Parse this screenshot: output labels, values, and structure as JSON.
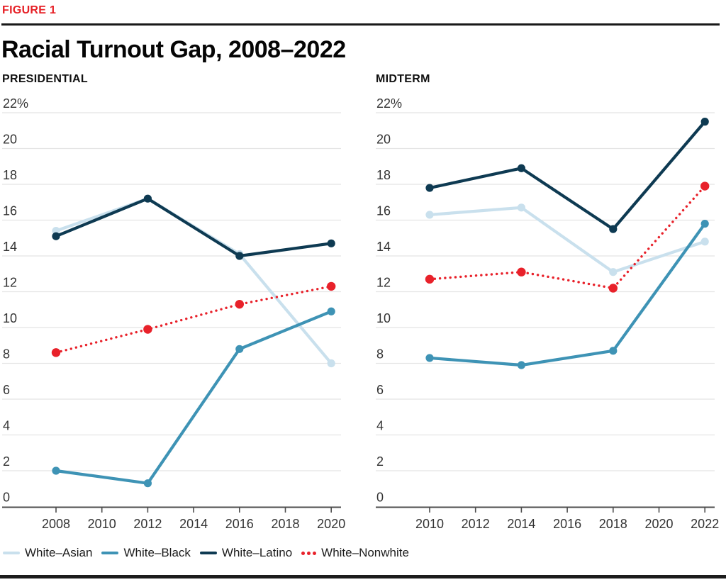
{
  "header": {
    "figure_label": "FIGURE 1",
    "title": "Racial Turnout Gap, 2008–2022"
  },
  "colors": {
    "white_asian": "#c9e0ed",
    "white_black": "#3e93b5",
    "white_latino": "#0e3a52",
    "white_nonwhite": "#e8212a",
    "figure_label_red": "#e62026",
    "gridline": "#e4e4e4",
    "axis": "#4d4d4d",
    "tick_text": "#333333",
    "rule": "#191919"
  },
  "legend": {
    "items": [
      {
        "label": "White–Asian",
        "series_key": "white_asian",
        "swatch": "line"
      },
      {
        "label": "White–Black",
        "series_key": "white_black",
        "swatch": "line"
      },
      {
        "label": "White–Latino",
        "series_key": "white_latino",
        "swatch": "line"
      },
      {
        "label": "White–Nonwhite",
        "series_key": "white_nonwhite",
        "swatch": "dots"
      }
    ]
  },
  "chart_data": [
    {
      "type": "line",
      "title": "PRESIDENTIAL",
      "ylabel_top_tick": "22%",
      "ylim": [
        0,
        22
      ],
      "ytick_step": 2,
      "grid": true,
      "legend_position": "bottom",
      "x_axis_ticks": [
        2008,
        2010,
        2012,
        2014,
        2016,
        2018,
        2020
      ],
      "x": [
        2008,
        2012,
        2016,
        2020
      ],
      "series": [
        {
          "name": "White–Asian",
          "color_key": "white_asian",
          "style": "solid",
          "values": [
            15.4,
            17.2,
            14.1,
            8.0
          ]
        },
        {
          "name": "White–Black",
          "color_key": "white_black",
          "style": "solid",
          "values": [
            2.0,
            1.3,
            8.8,
            10.9
          ]
        },
        {
          "name": "White–Latino",
          "color_key": "white_latino",
          "style": "solid",
          "values": [
            15.1,
            17.2,
            14.0,
            14.7
          ]
        },
        {
          "name": "White–Nonwhite",
          "color_key": "white_nonwhite",
          "style": "dotted",
          "values": [
            8.6,
            9.9,
            11.3,
            12.3
          ]
        }
      ]
    },
    {
      "type": "line",
      "title": "MIDTERM",
      "ylabel_top_tick": "22%",
      "ylim": [
        0,
        22
      ],
      "ytick_step": 2,
      "grid": true,
      "legend_position": "bottom",
      "x_axis_ticks": [
        2010,
        2012,
        2014,
        2016,
        2018,
        2020,
        2022
      ],
      "x": [
        2010,
        2014,
        2018,
        2022
      ],
      "series": [
        {
          "name": "White–Asian",
          "color_key": "white_asian",
          "style": "solid",
          "values": [
            16.3,
            16.7,
            13.1,
            14.8
          ]
        },
        {
          "name": "White–Black",
          "color_key": "white_black",
          "style": "solid",
          "values": [
            8.3,
            7.9,
            8.7,
            15.8
          ]
        },
        {
          "name": "White–Latino",
          "color_key": "white_latino",
          "style": "solid",
          "values": [
            17.8,
            18.9,
            15.5,
            21.5
          ]
        },
        {
          "name": "White–Nonwhite",
          "color_key": "white_nonwhite",
          "style": "dotted",
          "values": [
            12.7,
            13.1,
            12.2,
            17.9
          ]
        }
      ]
    }
  ]
}
